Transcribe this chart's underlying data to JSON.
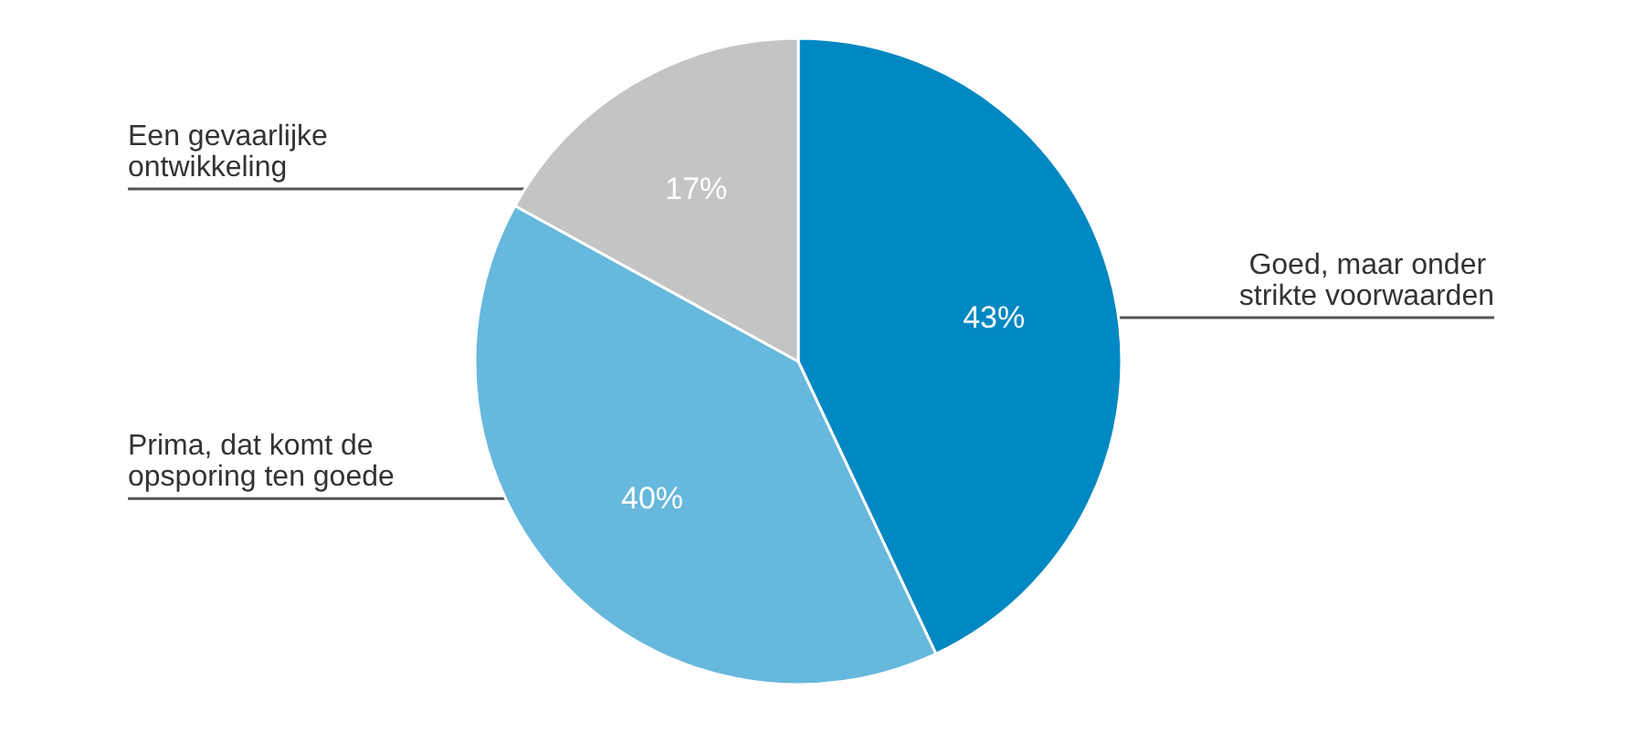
{
  "chart_data": {
    "type": "pie",
    "categories": [
      "Goed, maar onder strikte voorwaarden",
      "Prima, dat komt de opsporing ten goede",
      "Een gevaarlijke ontwikkeling"
    ],
    "values": [
      43,
      40,
      17
    ],
    "colors": [
      "#0088c2",
      "#66b8dc",
      "#c4c4c4"
    ],
    "value_labels": [
      "43%",
      "40%",
      "17%"
    ]
  }
}
